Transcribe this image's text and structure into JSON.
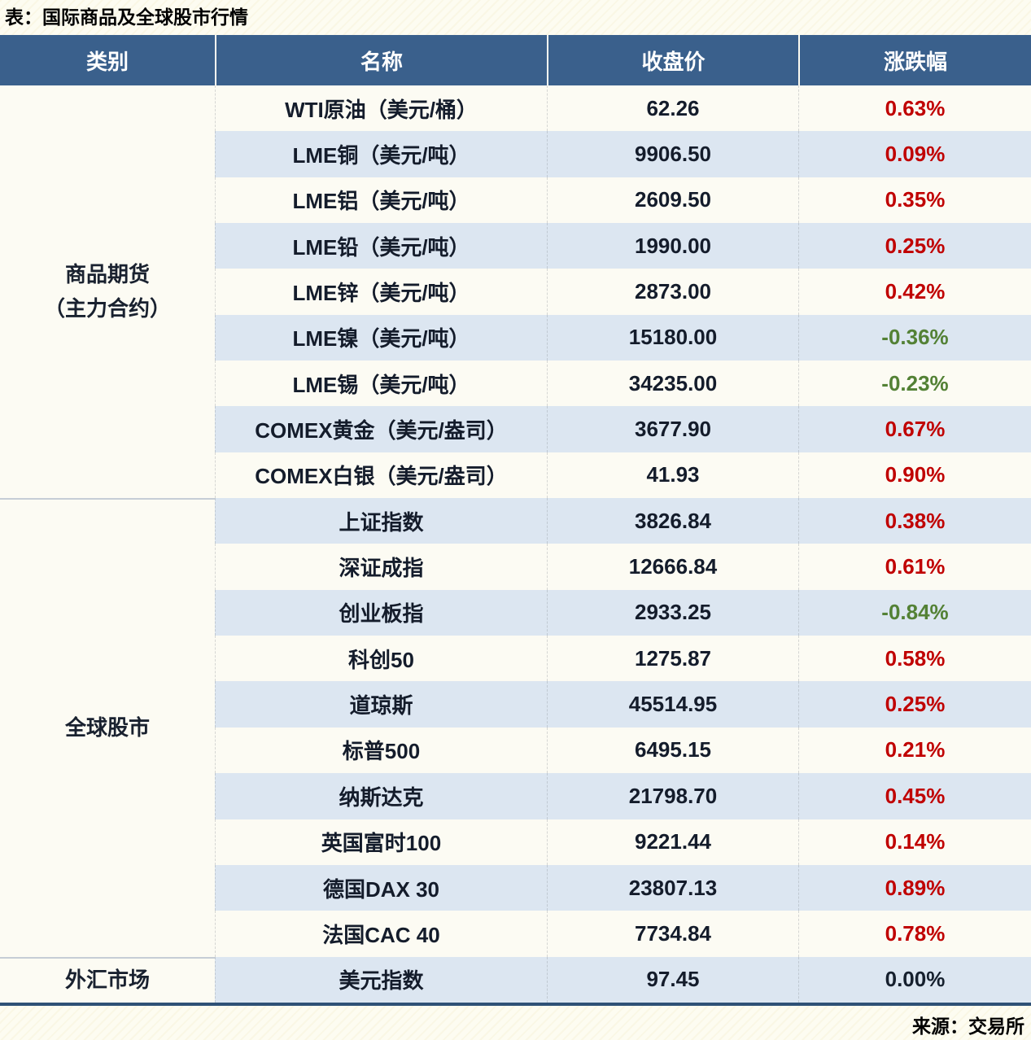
{
  "title": "表：国际商品及全球股市行情",
  "source": "来源：交易所",
  "colors": {
    "up": "#C00000",
    "down": "#538135",
    "flat": "#16202E",
    "header_bg": "#3A608C",
    "row_alt": "#DCE6F1",
    "row_base": "#FCFBF3",
    "bottom_border": "#2E5176"
  },
  "table": {
    "columns": [
      "类别",
      "名称",
      "收盘价",
      "涨跌幅"
    ],
    "groups": [
      {
        "category": [
          "商品期货",
          "（主力合约）"
        ],
        "rows": [
          {
            "name": "WTI原油（美元/桶）",
            "close": "62.26",
            "change": "0.63%",
            "direction": "up"
          },
          {
            "name": "LME铜（美元/吨）",
            "close": "9906.50",
            "change": "0.09%",
            "direction": "up"
          },
          {
            "name": "LME铝（美元/吨）",
            "close": "2609.50",
            "change": "0.35%",
            "direction": "up"
          },
          {
            "name": "LME铅（美元/吨）",
            "close": "1990.00",
            "change": "0.25%",
            "direction": "up"
          },
          {
            "name": "LME锌（美元/吨）",
            "close": "2873.00",
            "change": "0.42%",
            "direction": "up"
          },
          {
            "name": "LME镍（美元/吨）",
            "close": "15180.00",
            "change": "-0.36%",
            "direction": "down"
          },
          {
            "name": "LME锡（美元/吨）",
            "close": "34235.00",
            "change": "-0.23%",
            "direction": "down"
          },
          {
            "name": "COMEX黄金（美元/盎司）",
            "close": "3677.90",
            "change": "0.67%",
            "direction": "up"
          },
          {
            "name": "COMEX白银（美元/盎司）",
            "close": "41.93",
            "change": "0.90%",
            "direction": "up"
          }
        ]
      },
      {
        "category": [
          "全球股市"
        ],
        "rows": [
          {
            "name": "上证指数",
            "close": "3826.84",
            "change": "0.38%",
            "direction": "up"
          },
          {
            "name": "深证成指",
            "close": "12666.84",
            "change": "0.61%",
            "direction": "up"
          },
          {
            "name": "创业板指",
            "close": "2933.25",
            "change": "-0.84%",
            "direction": "down"
          },
          {
            "name": "科创50",
            "close": "1275.87",
            "change": "0.58%",
            "direction": "up"
          },
          {
            "name": "道琼斯",
            "close": "45514.95",
            "change": "0.25%",
            "direction": "up"
          },
          {
            "name": "标普500",
            "close": "6495.15",
            "change": "0.21%",
            "direction": "up"
          },
          {
            "name": "纳斯达克",
            "close": "21798.70",
            "change": "0.45%",
            "direction": "up"
          },
          {
            "name": "英国富时100",
            "close": "9221.44",
            "change": "0.14%",
            "direction": "up"
          },
          {
            "name": "德国DAX 30",
            "close": "23807.13",
            "change": "0.89%",
            "direction": "up"
          },
          {
            "name": "法国CAC 40",
            "close": "7734.84",
            "change": "0.78%",
            "direction": "up"
          }
        ]
      },
      {
        "category": [
          "外汇市场"
        ],
        "rows": [
          {
            "name": "美元指数",
            "close": "97.45",
            "change": "0.00%",
            "direction": "flat"
          }
        ]
      }
    ]
  },
  "chart_data": {
    "type": "table",
    "title": "表：国际商品及全球股市行情",
    "columns": [
      "类别",
      "名称",
      "收盘价",
      "涨跌幅"
    ],
    "rows": [
      [
        "商品期货（主力合约）",
        "WTI原油（美元/桶）",
        62.26,
        "0.63%"
      ],
      [
        "商品期货（主力合约）",
        "LME铜（美元/吨）",
        9906.5,
        "0.09%"
      ],
      [
        "商品期货（主力合约）",
        "LME铝（美元/吨）",
        2609.5,
        "0.35%"
      ],
      [
        "商品期货（主力合约）",
        "LME铅（美元/吨）",
        1990.0,
        "0.25%"
      ],
      [
        "商品期货（主力合约）",
        "LME锌（美元/吨）",
        2873.0,
        "0.42%"
      ],
      [
        "商品期货（主力合约）",
        "LME镍（美元/吨）",
        15180.0,
        "-0.36%"
      ],
      [
        "商品期货（主力合约）",
        "LME锡（美元/吨）",
        34235.0,
        "-0.23%"
      ],
      [
        "商品期货（主力合约）",
        "COMEX黄金（美元/盎司）",
        3677.9,
        "0.67%"
      ],
      [
        "商品期货（主力合约）",
        "COMEX白银（美元/盎司）",
        41.93,
        "0.90%"
      ],
      [
        "全球股市",
        "上证指数",
        3826.84,
        "0.38%"
      ],
      [
        "全球股市",
        "深证成指",
        12666.84,
        "0.61%"
      ],
      [
        "全球股市",
        "创业板指",
        2933.25,
        "-0.84%"
      ],
      [
        "全球股市",
        "科创50",
        1275.87,
        "0.58%"
      ],
      [
        "全球股市",
        "道琼斯",
        45514.95,
        "0.25%"
      ],
      [
        "全球股市",
        "标普500",
        6495.15,
        "0.21%"
      ],
      [
        "全球股市",
        "纳斯达克",
        21798.7,
        "0.45%"
      ],
      [
        "全球股市",
        "英国富时100",
        9221.44,
        "0.14%"
      ],
      [
        "全球股市",
        "德国DAX 30",
        23807.13,
        "0.89%"
      ],
      [
        "全球股市",
        "法国CAC 40",
        7734.84,
        "0.78%"
      ],
      [
        "外汇市场",
        "美元指数",
        97.45,
        "0.00%"
      ]
    ]
  }
}
